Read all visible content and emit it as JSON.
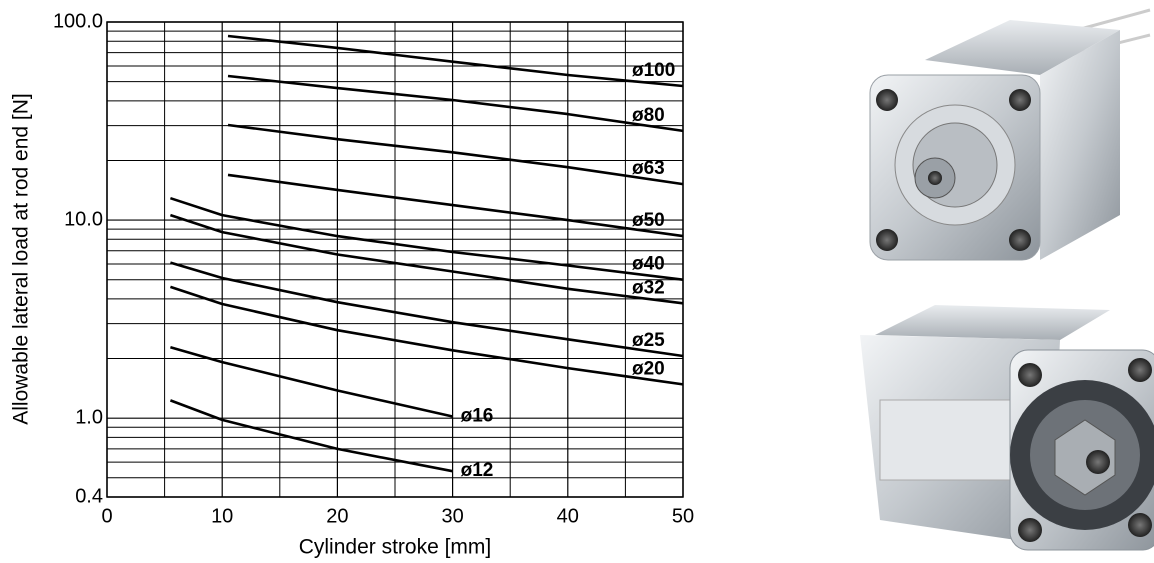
{
  "chart_data": {
    "type": "line",
    "xlabel": "Cylinder stroke [mm]",
    "ylabel": "Allowable lateral load at rod end [N]",
    "xlim": [
      0,
      50
    ],
    "xticks": [
      0,
      10,
      20,
      30,
      40,
      50
    ],
    "xminor": [
      5,
      15,
      25,
      35,
      45
    ],
    "ylim": [
      0.4,
      100
    ],
    "yscale": "log",
    "yticks": [
      {
        "value": 100,
        "label": "100.0"
      },
      {
        "value": 10,
        "label": "10.0"
      },
      {
        "value": 1,
        "label": "1.0"
      },
      {
        "value": 0.4,
        "label": "0.4"
      }
    ],
    "yminor": [
      0.5,
      0.6,
      0.7,
      0.8,
      0.9,
      2,
      3,
      4,
      5,
      6,
      7,
      8,
      9,
      20,
      30,
      40,
      50,
      60,
      70,
      80,
      90
    ],
    "grid": true,
    "series": [
      {
        "name": "ø100",
        "color": "#000000",
        "x": [
          10.5,
          20,
          30,
          40,
          50
        ],
        "values": [
          85,
          74,
          63,
          54,
          47.5
        ]
      },
      {
        "name": "ø80",
        "color": "#000000",
        "x": [
          10.5,
          20,
          30,
          40,
          50
        ],
        "values": [
          53.4,
          46.4,
          40.4,
          34.3,
          28.2
        ]
      },
      {
        "name": "ø63",
        "color": "#000000",
        "x": [
          10.5,
          20,
          30,
          40,
          50
        ],
        "values": [
          30.2,
          25.6,
          22,
          18.5,
          15.2
        ]
      },
      {
        "name": "ø50",
        "color": "#000000",
        "x": [
          10.5,
          20,
          30,
          40,
          50
        ],
        "values": [
          16.9,
          14.2,
          11.9,
          10,
          8.3
        ]
      },
      {
        "name": "ø40",
        "color": "#000000",
        "x": [
          5.5,
          10,
          20,
          30,
          40,
          50
        ],
        "values": [
          12.9,
          10.6,
          8.3,
          6.9,
          5.9,
          5.0
        ]
      },
      {
        "name": "ø32",
        "color": "#000000",
        "x": [
          5.5,
          10,
          20,
          30,
          40,
          50
        ],
        "values": [
          10.6,
          8.7,
          6.7,
          5.5,
          4.5,
          3.8
        ]
      },
      {
        "name": "ø25",
        "color": "#000000",
        "x": [
          5.5,
          10,
          20,
          30,
          40,
          50
        ],
        "values": [
          6.1,
          5.1,
          3.85,
          3.05,
          2.5,
          2.06
        ]
      },
      {
        "name": "ø20",
        "color": "#000000",
        "x": [
          5.5,
          10,
          20,
          30,
          40,
          50
        ],
        "values": [
          4.6,
          3.77,
          2.78,
          2.2,
          1.79,
          1.48
        ]
      },
      {
        "name": "ø16",
        "color": "#000000",
        "x": [
          5.5,
          10,
          20,
          30
        ],
        "values": [
          2.28,
          1.92,
          1.38,
          1.02
        ]
      },
      {
        "name": "ø12",
        "color": "#000000",
        "x": [
          5.5,
          10,
          20,
          30
        ],
        "values": [
          1.23,
          0.98,
          0.7,
          0.54
        ]
      }
    ]
  }
}
